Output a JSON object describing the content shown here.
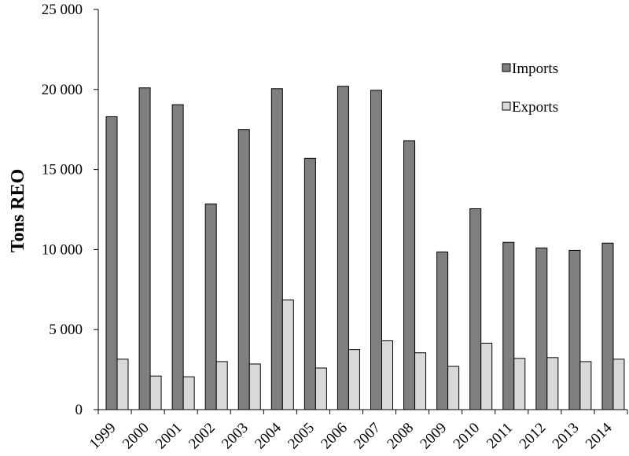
{
  "chart_data": {
    "type": "bar",
    "title": "",
    "xlabel": "",
    "ylabel": "Tons REO",
    "ylim": [
      0,
      25000
    ],
    "yticks": [
      0,
      5000,
      10000,
      15000,
      20000,
      25000
    ],
    "ytick_labels": [
      "0",
      "5 000",
      "10 000",
      "15 000",
      "20 000",
      "25 000"
    ],
    "categories": [
      "1999",
      "2000",
      "2001",
      "2002",
      "2003",
      "2004",
      "2005",
      "2006",
      "2007",
      "2008",
      "2009",
      "2010",
      "2011",
      "2012",
      "2013",
      "2014"
    ],
    "series": [
      {
        "name": "Imports",
        "color": "#7f7f7f",
        "values": [
          18300,
          20100,
          19050,
          12850,
          17500,
          20050,
          15700,
          20200,
          19950,
          16800,
          9850,
          12550,
          10450,
          10100,
          9950,
          10400
        ]
      },
      {
        "name": "Exports",
        "color": "#d9d9d9",
        "values": [
          3150,
          2100,
          2050,
          3000,
          2850,
          6850,
          2600,
          3750,
          4300,
          3550,
          2700,
          4150,
          3200,
          3250,
          3000,
          3150
        ]
      }
    ],
    "grid": false,
    "legend_position": "top-right"
  }
}
